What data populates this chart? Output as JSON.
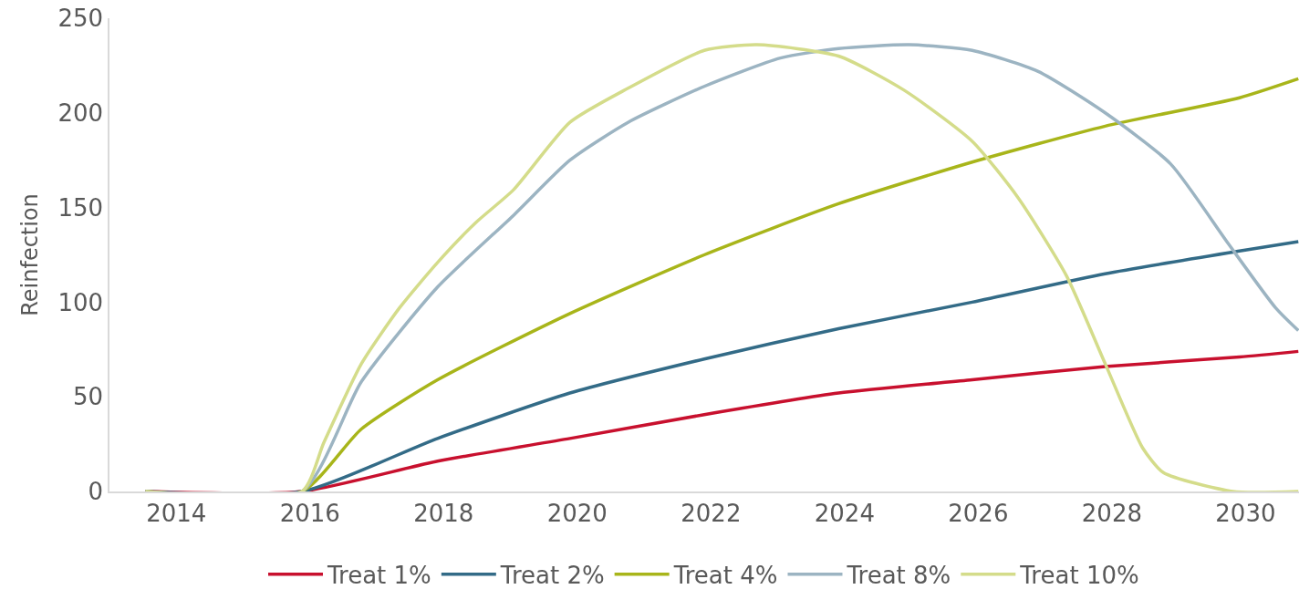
{
  "chart_data": {
    "type": "line",
    "ylabel": "Reinfection",
    "xlim": [
      2013.0,
      2030.8
    ],
    "xticks": [
      2014,
      2016,
      2018,
      2020,
      2022,
      2024,
      2026,
      2028,
      2030
    ],
    "ylim": [
      0,
      250
    ],
    "yticks": [
      0,
      50,
      100,
      150,
      200,
      250
    ],
    "legend": "bottom",
    "marker": "none",
    "line_style": "solid",
    "series": [
      {
        "name": "Treat 1%",
        "color": "#c8102e",
        "x": [
          2013.54,
          2015.88,
          2017.91,
          2019.89,
          2021.9,
          2023.91,
          2025.91,
          2027.9,
          2029.91,
          2030.79
        ],
        "values": [
          0,
          0,
          16,
          28,
          40.6,
          52,
          59,
          66,
          71,
          74
        ]
      },
      {
        "name": "Treat 2%",
        "color": "#336b87",
        "x": [
          2013.54,
          2015.88,
          2017.91,
          2019.89,
          2021.9,
          2023.91,
          2025.91,
          2027.9,
          2029.91,
          2030.79
        ],
        "values": [
          0,
          0,
          28,
          52,
          70,
          86,
          100,
          115,
          127,
          132
        ]
      },
      {
        "name": "Treat 4%",
        "color": "#a8b51a",
        "x": [
          2013.54,
          2015.88,
          2016.77,
          2017.91,
          2019.89,
          2021.9,
          2023.91,
          2025.91,
          2027.9,
          2029.91,
          2030.79
        ],
        "values": [
          0,
          0,
          33,
          59,
          94,
          125,
          152,
          174,
          193,
          208,
          218
        ]
      },
      {
        "name": "Treat 8%",
        "color": "#9cb4c2",
        "x": [
          2013.54,
          2015.88,
          2016.77,
          2017.91,
          2019.05,
          2019.89,
          2020.76,
          2021.9,
          2023.04,
          2023.91,
          2024.97,
          2025.91,
          2026.89,
          2027.9,
          2028.88,
          2029.74,
          2030.45,
          2030.79
        ],
        "values": [
          0,
          0,
          58,
          108,
          146,
          175,
          195,
          214,
          229,
          234,
          236,
          233,
          222,
          200,
          173,
          131,
          97,
          85
        ]
      },
      {
        "name": "Treat 10%",
        "color": "#d4dc8a",
        "x": [
          2013.54,
          2015.88,
          2016.21,
          2016.77,
          2017.34,
          2017.91,
          2018.48,
          2019.05,
          2019.89,
          2020.76,
          2021.9,
          2022.69,
          2023.91,
          2024.89,
          2025.91,
          2026.6,
          2027.32,
          2027.9,
          2028.46,
          2028.77,
          2029.81,
          2030.79
        ],
        "values": [
          0,
          0,
          26,
          67.5,
          97,
          121,
          142,
          159.5,
          195,
          213,
          233,
          236,
          230,
          212,
          185,
          155,
          114,
          67.5,
          23,
          10,
          0,
          0
        ]
      }
    ]
  }
}
